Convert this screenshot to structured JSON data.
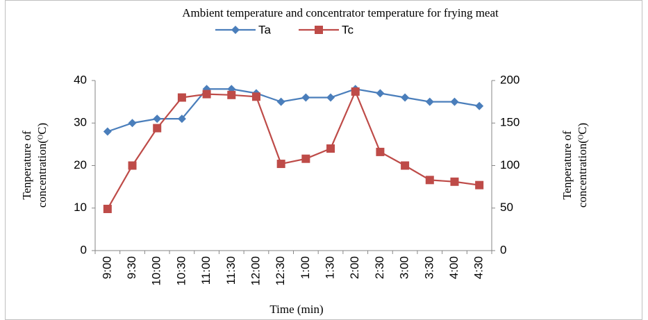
{
  "chart_data": {
    "type": "line",
    "title": "Ambient temperature and concentrator temperature for frying meat",
    "categories": [
      "9:00",
      "9:30",
      "10:00",
      "10:30",
      "11:00",
      "11:30",
      "12:00",
      "12:30",
      "1:00",
      "1:30",
      "2:00",
      "2:30",
      "3:00",
      "3:30",
      "4:00",
      "4:30"
    ],
    "series": [
      {
        "name": "Ta",
        "color": "#4a7ebb",
        "marker": "diamond",
        "values": [
          28,
          30,
          31,
          31,
          38,
          38,
          37,
          35,
          36,
          36,
          38,
          37,
          36,
          35,
          35,
          34
        ]
      },
      {
        "name": "Tc",
        "color": "#be4b48",
        "marker": "square",
        "axis": "y2",
        "values": [
          49,
          100,
          144,
          180,
          184,
          183,
          181,
          102,
          108,
          120,
          187,
          116,
          100,
          83,
          81,
          77
        ]
      }
    ],
    "ylim": [
      0,
      40
    ],
    "yticks": [
      0,
      10,
      20,
      30,
      40
    ],
    "y2lim": [
      0,
      200
    ],
    "y2ticks": [
      0,
      50,
      100,
      150,
      200
    ],
    "x_label": "Time (min)",
    "y_label": [
      "Tenperature of",
      "concentration(ᴼC)"
    ],
    "y2_label": [
      "Tenperature  of",
      "concentration(ᴼC)"
    ],
    "legend": "top"
  }
}
